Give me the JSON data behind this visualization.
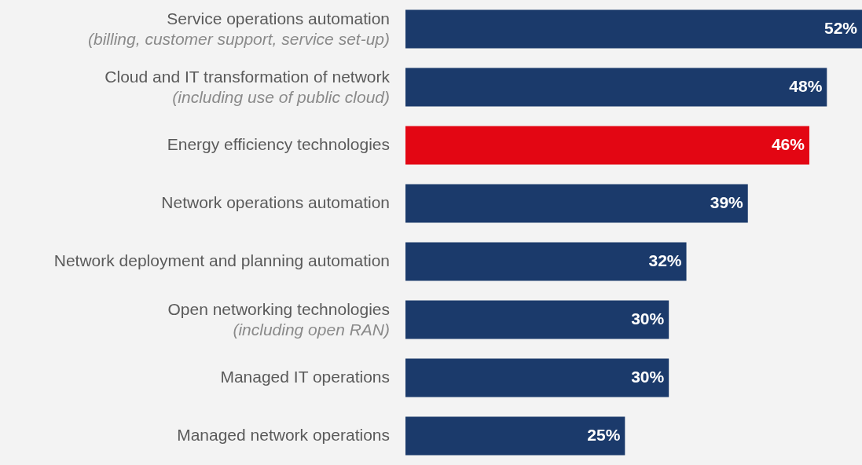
{
  "chart_data": {
    "type": "bar",
    "orientation": "horizontal",
    "categories": [
      "Service operations automation\n(billing, customer support, service set-up)",
      "Cloud and IT transformation of network\n(including use of public cloud)",
      "Energy efficiency technologies",
      "Network operations automation",
      "Network deployment and planning automation",
      "Open networking technologies\n(including open RAN)",
      "Managed IT operations",
      "Managed network operations"
    ],
    "values": [
      52,
      48,
      46,
      39,
      32,
      30,
      30,
      25
    ],
    "colors": [
      "#1b3a6b",
      "#1b3a6b",
      "#e30613",
      "#1b3a6b",
      "#1b3a6b",
      "#1b3a6b",
      "#1b3a6b",
      "#1b3a6b"
    ],
    "value_labels": [
      "52%",
      "48%",
      "46%",
      "39%",
      "32%",
      "30%",
      "30%",
      "25%"
    ]
  }
}
